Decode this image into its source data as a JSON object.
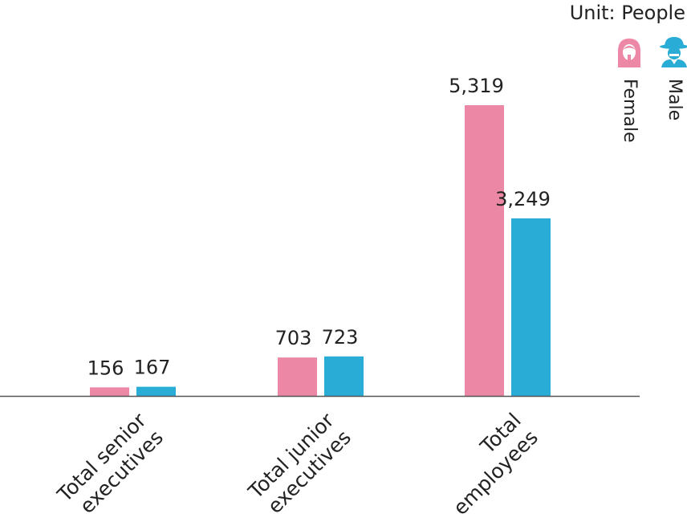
{
  "unit_label": "Unit: People",
  "legend": [
    {
      "label": "Female",
      "color": "#EC87A5",
      "icon": "female-icon"
    },
    {
      "label": "Male",
      "color": "#29ACD6",
      "icon": "male-icon"
    }
  ],
  "chart_data": {
    "type": "bar",
    "categories": [
      [
        "Total senior",
        "executives"
      ],
      [
        "Total junior",
        "executives"
      ],
      [
        "Total",
        "employees"
      ]
    ],
    "series": [
      {
        "name": "Female",
        "color": "#EC87A5",
        "values": [
          156,
          703,
          5319
        ],
        "labels": [
          "156",
          "703",
          "5,319"
        ]
      },
      {
        "name": "Male",
        "color": "#29ACD6",
        "values": [
          167,
          723,
          3249
        ],
        "labels": [
          "167",
          "723",
          "3,249"
        ]
      }
    ],
    "ylim": [
      0,
      5319
    ],
    "legend_position": "top-right"
  }
}
